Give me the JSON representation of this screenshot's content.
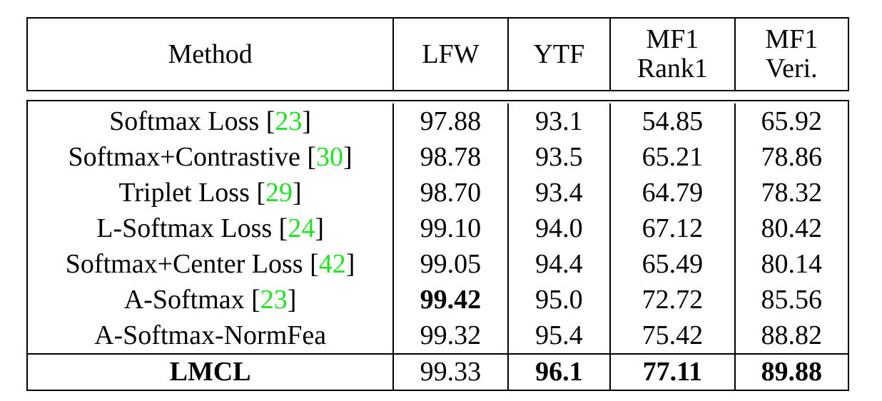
{
  "table": {
    "headers": [
      {
        "line1": "Method",
        "line2": ""
      },
      {
        "line1": "LFW",
        "line2": ""
      },
      {
        "line1": "YTF",
        "line2": ""
      },
      {
        "line1": "MF1",
        "line2": "Rank1"
      },
      {
        "line1": "MF1",
        "line2": "Veri."
      }
    ],
    "rows": [
      {
        "method": "Softmax Loss",
        "ref": "23",
        "lfw": "97.88",
        "ytf": "93.1",
        "rank1": "54.85",
        "veri": "65.92"
      },
      {
        "method": "Softmax+Contrastive",
        "ref": "30",
        "lfw": "98.78",
        "ytf": "93.5",
        "rank1": "65.21",
        "veri": "78.86"
      },
      {
        "method": "Triplet Loss",
        "ref": "29",
        "lfw": "98.70",
        "ytf": "93.4",
        "rank1": "64.79",
        "veri": "78.32"
      },
      {
        "method": "L-Softmax Loss",
        "ref": "24",
        "lfw": "99.10",
        "ytf": "94.0",
        "rank1": "67.12",
        "veri": "80.42"
      },
      {
        "method": "Softmax+Center Loss",
        "ref": "42",
        "lfw": "99.05",
        "ytf": "94.4",
        "rank1": "65.49",
        "veri": "80.14"
      },
      {
        "method": "A-Softmax",
        "ref": "23",
        "lfw": "99.42",
        "ytf": "95.0",
        "rank1": "72.72",
        "veri": "85.56"
      },
      {
        "method": "A-Softmax-NormFea",
        "ref": "",
        "lfw": "99.32",
        "ytf": "95.4",
        "rank1": "75.42",
        "veri": "88.82"
      }
    ],
    "final_row": {
      "method": "LMCL",
      "lfw": "99.33",
      "ytf": "96.1",
      "rank1": "77.11",
      "veri": "89.88"
    },
    "colors": {
      "citation": "#22e022",
      "text": "#000000"
    }
  }
}
